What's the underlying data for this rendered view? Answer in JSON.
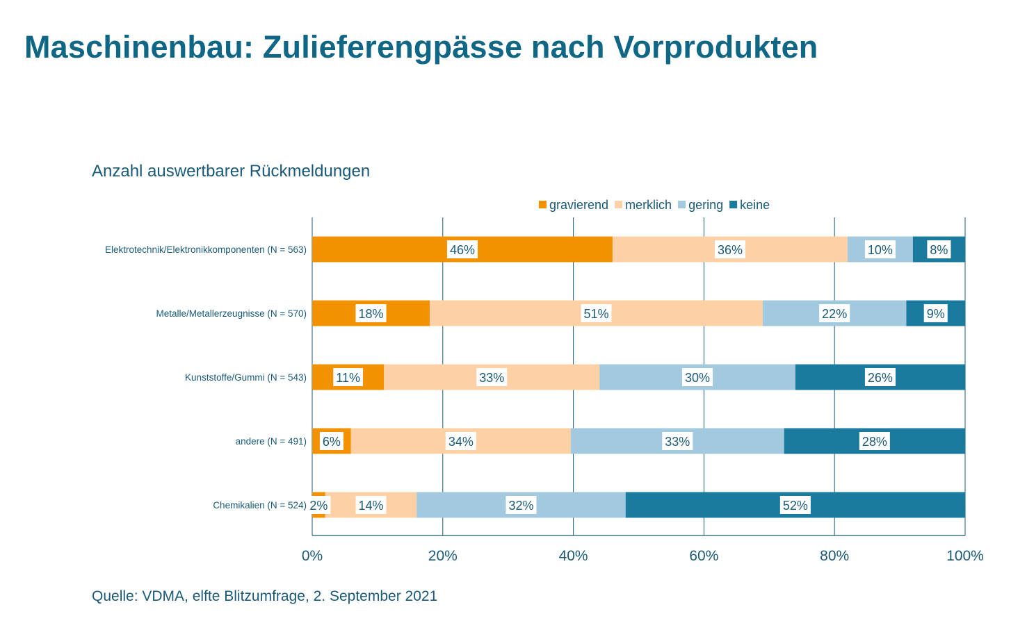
{
  "title": "Maschinenbau: Zulieferengpässe nach Vorprodukten",
  "subtitle": "Anzahl auswertbarer Rückmeldungen",
  "source": "Quelle: VDMA, elfte Blitzumfrage, 2. September 2021",
  "chart_data": {
    "type": "bar",
    "orientation": "horizontal",
    "stacked": "percent",
    "categories": [
      "Elektrotechnik/Elektronikkomponenten (N = 563)",
      "Metalle/Metallerzeugnisse (N = 570)",
      "Kunststoffe/Gummi (N = 543)",
      "andere (N = 491)",
      "Chemikalien (N = 524)"
    ],
    "series": [
      {
        "name": "gravierend",
        "color": "#f39200",
        "values": [
          46,
          18,
          11,
          6,
          2
        ]
      },
      {
        "name": "merklich",
        "color": "#fdd1a5",
        "values": [
          36,
          51,
          33,
          34,
          14
        ]
      },
      {
        "name": "gering",
        "color": "#a3c9de",
        "values": [
          10,
          22,
          30,
          33,
          32
        ]
      },
      {
        "name": "keine",
        "color": "#1b7b9e",
        "values": [
          8,
          9,
          26,
          28,
          52
        ]
      }
    ],
    "xlim": [
      0,
      100
    ],
    "xticks": [
      "0%",
      "20%",
      "40%",
      "60%",
      "80%",
      "100%"
    ],
    "grid": "vertical",
    "legend": "top",
    "data_label_suffix": "%"
  }
}
